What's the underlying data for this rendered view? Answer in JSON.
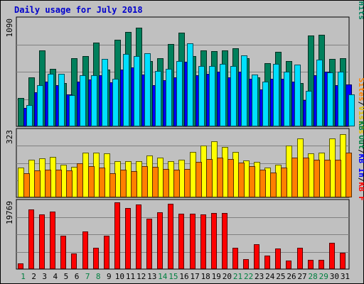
{
  "chart_data": {
    "type": "bar",
    "title": "Daily usage for July 2018",
    "categories": [
      "1",
      "2",
      "3",
      "4",
      "5",
      "6",
      "7",
      "8",
      "9",
      "10",
      "11",
      "12",
      "13",
      "14",
      "15",
      "16",
      "17",
      "18",
      "19",
      "20",
      "21",
      "22",
      "23",
      "24",
      "25",
      "26",
      "27",
      "28",
      "29",
      "30",
      "31"
    ],
    "weekend_days": [
      "1",
      "7",
      "8",
      "14",
      "15",
      "21",
      "22",
      "28",
      "29"
    ],
    "weekend_color": "#008040",
    "weekday_color": "#000000",
    "background_color": "#c0c0c0",
    "bar_outline_color": "#000000",
    "panels": [
      {
        "id": "hits-files-pages",
        "ymax_label": "1090",
        "ymax": 1090,
        "right_labels": [
          {
            "text": "Hits",
            "color": "#00805c"
          },
          {
            "text": "/",
            "color": "#000000"
          },
          {
            "text": "Files",
            "color": "#0000ff"
          },
          {
            "text": "/",
            "color": "#000000"
          },
          {
            "text": "Pages",
            "color": "#00e0ff"
          }
        ],
        "series": [
          {
            "name": "Hits",
            "color": "#00805c",
            "values": [
              290,
              500,
              780,
              590,
              440,
              700,
              720,
              860,
              580,
              890,
              970,
              1010,
              670,
              700,
              840,
              960,
              720,
              780,
              770,
              780,
              800,
              700,
              500,
              650,
              760,
              670,
              440,
              930,
              940,
              690,
              700
            ]
          },
          {
            "name": "Files",
            "color": "#0000ff",
            "values": [
              190,
              350,
              460,
              420,
              330,
              460,
              480,
              520,
              450,
              580,
              600,
              530,
              420,
              470,
              500,
              660,
              520,
              540,
              560,
              500,
              560,
              490,
              380,
              490,
              490,
              460,
              270,
              520,
              560,
              420,
              430
            ]
          },
          {
            "name": "Pages",
            "color": "#00e0ff",
            "values": [
              220,
              420,
              540,
              540,
              320,
              520,
              520,
              690,
              490,
              740,
              720,
              750,
              570,
              590,
              670,
              850,
              620,
              620,
              640,
              620,
              730,
              530,
              460,
              640,
              560,
              630,
              360,
              680,
              550,
              560,
              330
            ]
          }
        ]
      },
      {
        "id": "visits-sites",
        "ymax_label": "323",
        "ymax": 323,
        "right_labels": [
          {
            "text": "Visits",
            "color": "#e0c000"
          },
          {
            "text": "/",
            "color": "#000000"
          },
          {
            "text": "Sites",
            "color": "#ff8000"
          }
        ],
        "series": [
          {
            "name": "Visits",
            "color": "#ffff00",
            "values": [
              145,
              183,
              192,
              197,
              159,
              150,
              220,
              220,
              217,
              178,
              176,
              178,
              205,
              194,
              178,
              184,
              221,
              254,
              275,
              248,
              221,
              179,
              174,
              145,
              159,
              253,
              289,
              217,
              218,
              288,
              308
            ]
          },
          {
            "name": "Sites",
            "color": "#ff8000",
            "values": [
              119,
              133,
              137,
              136,
              133,
              165,
              153,
              145,
              119,
              136,
              127,
              154,
              151,
              138,
              136,
              138,
              173,
              189,
              193,
              187,
              169,
              154,
              134,
              122,
              145,
              195,
              196,
              183,
              184,
              183,
              218
            ]
          }
        ]
      },
      {
        "id": "kbytes",
        "ymax_label": "19769",
        "ymax": 19769,
        "right_labels": [
          {
            "text": "KB F",
            "color": "#ff0000"
          },
          {
            "text": "/",
            "color": "#000000"
          },
          {
            "text": "KB In",
            "color": "#0000ff"
          },
          {
            "text": "/",
            "color": "#000000"
          },
          {
            "text": "KB Out",
            "color": "#008040"
          }
        ],
        "series": [
          {
            "name": "KB F",
            "color": "#ff0000",
            "values": [
              1600,
              17700,
              16200,
              17100,
              9800,
              4700,
              11200,
              6400,
              9800,
              19769,
              18000,
              19100,
              14900,
              16800,
              19300,
              16400,
              16400,
              16200,
              16700,
              16700,
              6400,
              2900,
              7400,
              4000,
              6200,
              2600,
              6300,
              2800,
              2800,
              7700,
              4900
            ]
          }
        ]
      }
    ]
  }
}
